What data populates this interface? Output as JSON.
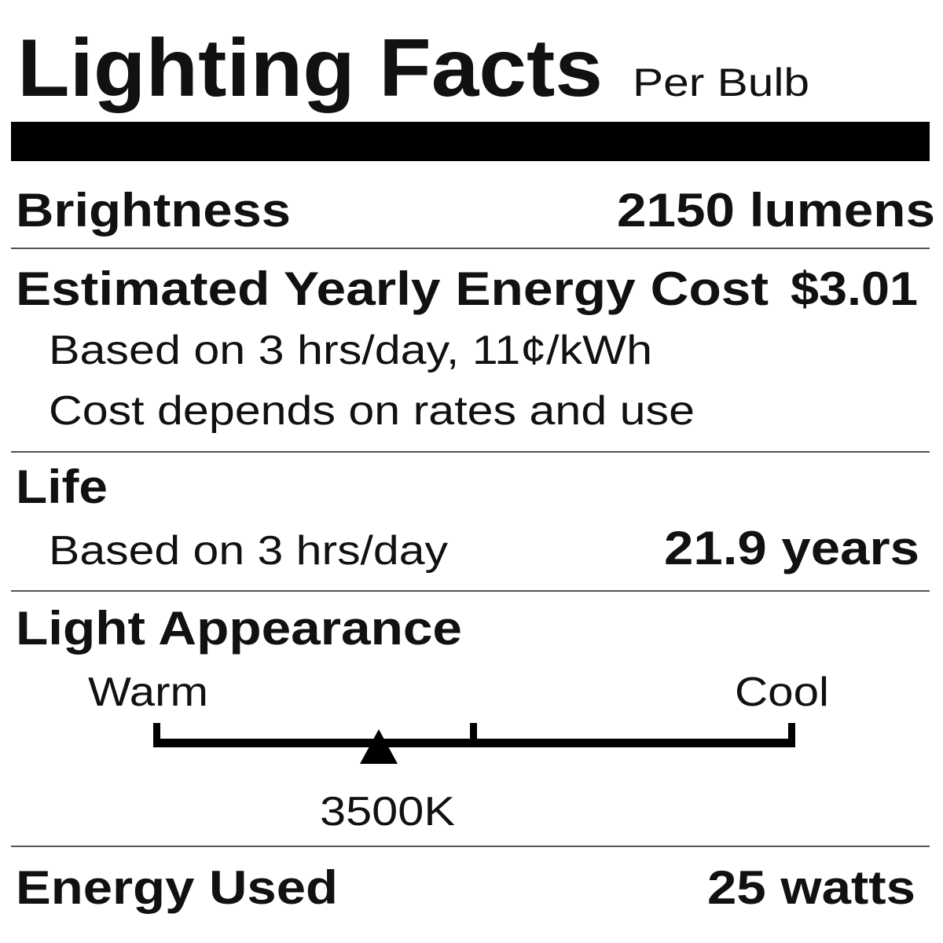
{
  "header": {
    "title": "Lighting Facts",
    "subtitle": "Per Bulb"
  },
  "brightness": {
    "label": "Brightness",
    "value": "2150 lumens"
  },
  "cost": {
    "label": "Estimated Yearly Energy Cost",
    "value": "$3.01",
    "notes": [
      "Based on 3 hrs/day, 11¢/kWh",
      "Cost depends on rates and use"
    ]
  },
  "life": {
    "label": "Life",
    "note": "Based on 3 hrs/day",
    "value": "21.9 years"
  },
  "appearance": {
    "label": "Light Appearance",
    "warm": "Warm",
    "cool": "Cool",
    "marker": "3500K"
  },
  "energy": {
    "label": "Energy Used",
    "value": "25 watts"
  }
}
